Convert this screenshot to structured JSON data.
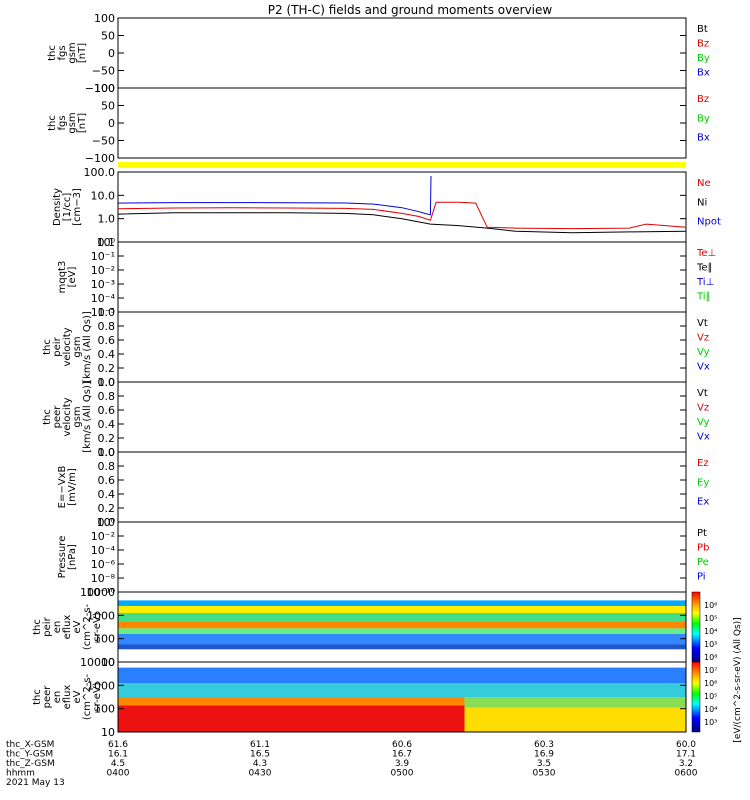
{
  "chart_data": {
    "type": "line",
    "title": "P2 (TH-C) fields and ground moments overview",
    "colors": {
      "black": "#000000",
      "red": "#e00000",
      "green": "#00cc00",
      "blue": "#0000dd",
      "yellow": "#ffff00"
    },
    "panels": [
      {
        "id": "fgs",
        "ylabel": [
          "thc",
          "fgs",
          "gsm",
          "[nT]"
        ],
        "yticks": [
          "100",
          "50",
          "0",
          "−50",
          "−100"
        ],
        "ylim": [
          -100,
          100
        ],
        "legend": [
          {
            "name": "Bt",
            "color": "black"
          },
          {
            "name": "Bz",
            "color": "red"
          },
          {
            "name": "By",
            "color": "green"
          },
          {
            "name": "Bx",
            "color": "blue"
          }
        ]
      },
      {
        "id": "fgs2",
        "ylabel": [
          "thc",
          "fgs",
          "gsm",
          "[nT]"
        ],
        "yticks": [
          "100",
          "50",
          "0",
          "−50",
          "−100"
        ],
        "ylim": [
          -120,
          120
        ],
        "legend": [
          {
            "name": "Bz",
            "color": "red"
          },
          {
            "name": "By",
            "color": "green"
          },
          {
            "name": "Bx",
            "color": "blue"
          }
        ]
      },
      {
        "id": "density",
        "ylabel": [
          "Density",
          "[1/cc]",
          "[cm−3]"
        ],
        "yticks": [
          "100.0",
          "10.0",
          "1.0",
          "0.1"
        ],
        "log": true,
        "ylim": [
          0.03,
          250
        ],
        "legend": [
          {
            "name": "Ne",
            "color": "red"
          },
          {
            "name": "Ni",
            "color": "black"
          },
          {
            "name": "Npot",
            "color": "blue"
          }
        ]
      },
      {
        "id": "temp",
        "ylabel": [
          "mqqt3",
          "[eV]"
        ],
        "yticks": [
          "10⁰",
          "10⁻¹",
          "10⁻²",
          "10⁻³",
          "10⁻⁴",
          "10⁻⁵"
        ],
        "legend": [
          {
            "name": "Te⊥",
            "color": "red"
          },
          {
            "name": "Te∥",
            "color": "black"
          },
          {
            "name": "Ti⊥",
            "color": "blue"
          },
          {
            "name": "Ti∥",
            "color": "green"
          }
        ]
      },
      {
        "id": "peir_vel",
        "ylabel": [
          "thc",
          "peir",
          "velocity",
          "gsm",
          "[km/s (All Qs)]"
        ],
        "yticks": [
          "1.0",
          "0.8",
          "0.6",
          "0.4",
          "0.2",
          "0.0"
        ],
        "legend": [
          {
            "name": "Vt",
            "color": "black"
          },
          {
            "name": "Vz",
            "color": "red"
          },
          {
            "name": "Vy",
            "color": "green"
          },
          {
            "name": "Vx",
            "color": "blue"
          }
        ]
      },
      {
        "id": "peer_vel",
        "ylabel": [
          "thc",
          "peer",
          "velocity",
          "gsm",
          "[km/s (All Qs)]"
        ],
        "yticks": [
          "1.0",
          "0.8",
          "0.6",
          "0.4",
          "0.2",
          "0.0"
        ],
        "legend": [
          {
            "name": "Vt",
            "color": "black"
          },
          {
            "name": "Vz",
            "color": "red"
          },
          {
            "name": "Vy",
            "color": "green"
          },
          {
            "name": "Vx",
            "color": "blue"
          }
        ]
      },
      {
        "id": "efield",
        "ylabel": [
          "E=−VxB",
          "[mV/m]"
        ],
        "yticks": [
          "1.0",
          "0.8",
          "0.6",
          "0.4",
          "0.2",
          "0.0"
        ],
        "legend": [
          {
            "name": "Ez",
            "color": "red"
          },
          {
            "name": "Ey",
            "color": "green"
          },
          {
            "name": "Ex",
            "color": "blue"
          }
        ]
      },
      {
        "id": "pressure",
        "ylabel": [
          "Pressure",
          "[nPa]"
        ],
        "yticks": [
          "10⁰",
          "10⁻²",
          "10⁻⁴",
          "10⁻⁶",
          "10⁻⁸",
          "10⁻¹⁰"
        ],
        "legend": [
          {
            "name": "Pt",
            "color": "black"
          },
          {
            "name": "Pb",
            "color": "red"
          },
          {
            "name": "Pe",
            "color": "green"
          },
          {
            "name": "Pi",
            "color": "blue"
          }
        ]
      },
      {
        "id": "peir_spec",
        "ylabel": [
          "thc",
          "peir",
          "en",
          "eflux",
          "eV",
          "(cm^2-s-",
          "sr-eV)"
        ],
        "yticks": [
          "10000",
          "1000",
          "100",
          "10"
        ]
      },
      {
        "id": "peer_spec",
        "ylabel": [
          "thc",
          "peer",
          "en",
          "eflux",
          "eV",
          "(cm^2-s-",
          "sr-eV)"
        ],
        "yticks": [
          "10000",
          "1000",
          "100",
          "10"
        ]
      }
    ],
    "density_series": [
      {
        "name": "Npot",
        "color": "blue",
        "x": [
          0,
          0.1,
          0.2,
          0.3,
          0.4,
          0.45,
          0.5,
          0.53,
          0.54,
          0.55,
          0.551,
          0.56
        ],
        "y": [
          4.5,
          4.8,
          4.8,
          4.7,
          4.6,
          4.0,
          2.5,
          1.5,
          1.2,
          1.0,
          150,
          null
        ]
      },
      {
        "name": "Ne",
        "color": "red",
        "x": [
          0,
          0.1,
          0.2,
          0.3,
          0.4,
          0.45,
          0.5,
          0.53,
          0.55,
          0.56,
          0.6,
          0.63,
          0.65,
          0.7,
          0.8,
          0.9,
          0.93,
          1.0
        ],
        "y": [
          2.2,
          2.4,
          2.5,
          2.4,
          2.3,
          2.0,
          1.2,
          0.8,
          0.5,
          5,
          5,
          4.5,
          0.2,
          0.18,
          0.17,
          0.18,
          0.3,
          0.2
        ]
      },
      {
        "name": "Ni",
        "color": "black",
        "x": [
          0,
          0.1,
          0.2,
          0.3,
          0.4,
          0.45,
          0.5,
          0.55,
          0.6,
          0.65,
          0.7,
          0.8,
          0.9,
          1.0
        ],
        "y": [
          1.1,
          1.3,
          1.3,
          1.3,
          1.2,
          1.0,
          0.6,
          0.3,
          0.25,
          0.18,
          0.12,
          0.1,
          0.11,
          0.12
        ]
      }
    ],
    "colorbar": {
      "label": "[eV/(cm^2-s-sr-eV) (All Qs)]",
      "ticks": [
        "10⁶",
        "10⁵",
        "10⁴",
        "10³",
        "10⁸",
        "10⁷",
        "10⁶",
        "10⁵",
        "10⁴",
        "10³"
      ]
    },
    "xaxis": {
      "rows": [
        {
          "label": "thc_X-GSM",
          "values": [
            "61.6",
            "61.1",
            "60.6",
            "60.3",
            "60.0"
          ]
        },
        {
          "label": "thc_Y-GSM",
          "values": [
            "16.1",
            "16.5",
            "16.7",
            "16.9",
            "17.1"
          ]
        },
        {
          "label": "thc_Z-GSM",
          "values": [
            "4.5",
            "4.3",
            "3.9",
            "3.5",
            "3.2"
          ]
        },
        {
          "label": "hhmm",
          "values": [
            "0400",
            "0430",
            "0500",
            "0530",
            "0600"
          ]
        }
      ],
      "date": "2021 May 13"
    }
  }
}
